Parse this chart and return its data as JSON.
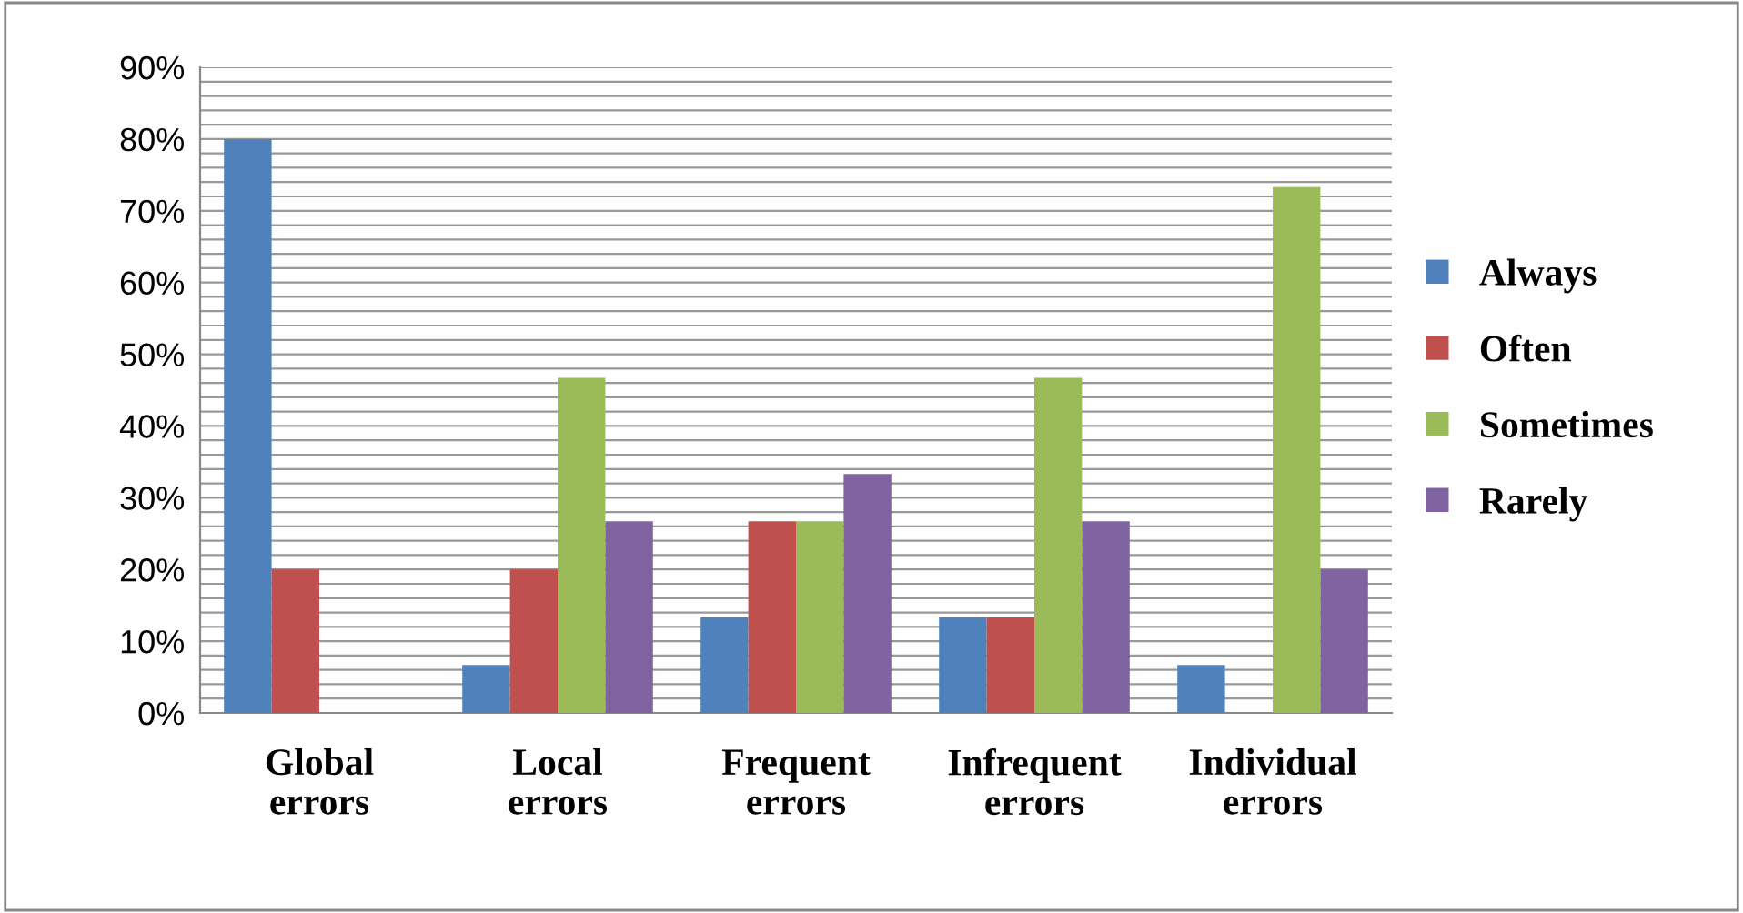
{
  "chart_data": {
    "type": "bar",
    "categories": [
      "Global\nerrors",
      "Local\nerrors",
      "Frequent\nerrors",
      "Infrequent\nerrors",
      "Individual\nerrors"
    ],
    "series": [
      {
        "name": "Always",
        "color": "#4f81bd",
        "values": [
          80,
          6.7,
          13.3,
          13.3,
          6.7
        ]
      },
      {
        "name": "Often",
        "color": "#c0504d",
        "values": [
          20,
          20,
          26.7,
          13.3,
          0
        ]
      },
      {
        "name": "Sometimes",
        "color": "#9bbb59",
        "values": [
          0,
          46.7,
          26.7,
          46.7,
          73.3
        ]
      },
      {
        "name": "Rarely",
        "color": "#8064a2",
        "values": [
          0,
          26.7,
          33.3,
          26.7,
          20
        ]
      }
    ],
    "ylim": [
      0,
      90
    ],
    "yticks": [
      {
        "value": 0,
        "label": "0%"
      },
      {
        "value": 2,
        "label": null
      },
      {
        "value": 4,
        "label": null
      },
      {
        "value": 6,
        "label": null
      },
      {
        "value": 8,
        "label": null
      },
      {
        "value": 10,
        "label": "10%"
      },
      {
        "value": 12,
        "label": null
      },
      {
        "value": 14,
        "label": null
      },
      {
        "value": 16,
        "label": null
      },
      {
        "value": 18,
        "label": null
      },
      {
        "value": 20,
        "label": "20%"
      },
      {
        "value": 22,
        "label": null
      },
      {
        "value": 24,
        "label": null
      },
      {
        "value": 26,
        "label": null
      },
      {
        "value": 28,
        "label": null
      },
      {
        "value": 30,
        "label": "30%"
      },
      {
        "value": 32,
        "label": null
      },
      {
        "value": 34,
        "label": null
      },
      {
        "value": 36,
        "label": null
      },
      {
        "value": 38,
        "label": null
      },
      {
        "value": 40,
        "label": "40%"
      },
      {
        "value": 42,
        "label": null
      },
      {
        "value": 44,
        "label": null
      },
      {
        "value": 46,
        "label": null
      },
      {
        "value": 48,
        "label": null
      },
      {
        "value": 50,
        "label": "50%"
      },
      {
        "value": 52,
        "label": null
      },
      {
        "value": 54,
        "label": null
      },
      {
        "value": 56,
        "label": null
      },
      {
        "value": 58,
        "label": null
      },
      {
        "value": 60,
        "label": "60%"
      },
      {
        "value": 62,
        "label": null
      },
      {
        "value": 64,
        "label": null
      },
      {
        "value": 66,
        "label": null
      },
      {
        "value": 68,
        "label": null
      },
      {
        "value": 70,
        "label": "70%"
      },
      {
        "value": 72,
        "label": null
      },
      {
        "value": 74,
        "label": null
      },
      {
        "value": 76,
        "label": null
      },
      {
        "value": 78,
        "label": null
      },
      {
        "value": 80,
        "label": "80%"
      },
      {
        "value": 82,
        "label": null
      },
      {
        "value": 84,
        "label": null
      },
      {
        "value": 86,
        "label": null
      },
      {
        "value": 88,
        "label": null
      },
      {
        "value": 90,
        "label": "90%"
      }
    ],
    "grid": "y",
    "legend": "right"
  }
}
